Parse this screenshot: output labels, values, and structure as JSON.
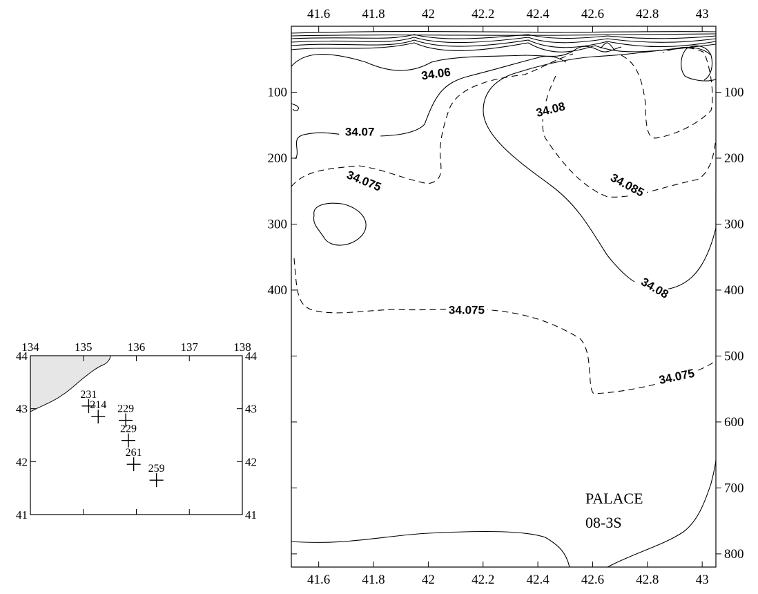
{
  "chart_data": [
    {
      "id": "section",
      "type": "contour",
      "xlim": [
        41.5,
        43.05
      ],
      "ylim": [
        0,
        820
      ],
      "y_inverted": true,
      "x_ticks": [
        41.6,
        41.8,
        42,
        42.2,
        42.4,
        42.6,
        42.8,
        43
      ],
      "x_tick_labels": [
        "41.6",
        "41.8",
        "42",
        "42.2",
        "42.4",
        "42.6",
        "42.8",
        "43"
      ],
      "y_ticks": [
        100,
        200,
        300,
        400,
        500,
        600,
        700,
        800
      ],
      "y_tick_labels_left": [
        "100",
        "200",
        "300",
        "400"
      ],
      "y_tick_labels_right": [
        "100",
        "200",
        "300",
        "400",
        "500",
        "600",
        "700",
        "800"
      ],
      "contour_labels": [
        {
          "text": "34.06",
          "x": 42.03,
          "y": 78,
          "rotate": -8
        },
        {
          "text": "34.08",
          "x": 42.45,
          "y": 132,
          "rotate": -14
        },
        {
          "text": "34.07",
          "x": 41.75,
          "y": 166,
          "rotate": 0
        },
        {
          "text": "34.075",
          "x": 41.76,
          "y": 240,
          "rotate": 22
        },
        {
          "text": "34.085",
          "x": 42.72,
          "y": 246,
          "rotate": 28
        },
        {
          "text": "34.08",
          "x": 42.82,
          "y": 402,
          "rotate": 30
        },
        {
          "text": "34.075",
          "x": 42.14,
          "y": 436,
          "rotate": 0
        },
        {
          "text": "34.075",
          "x": 42.91,
          "y": 537,
          "rotate": -12
        }
      ],
      "annotation": [
        "PALACE",
        "08-3S"
      ]
    },
    {
      "id": "location-map",
      "type": "scatter",
      "xlim": [
        134,
        138
      ],
      "ylim": [
        41,
        44
      ],
      "x_ticks": [
        134,
        135,
        136,
        137,
        138
      ],
      "x_tick_labels": [
        "134",
        "135",
        "136",
        "137",
        "138"
      ],
      "y_ticks": [
        41,
        42,
        43,
        44
      ],
      "y_tick_labels": [
        "41",
        "42",
        "43",
        "44"
      ],
      "stations": [
        {
          "label": "231",
          "lon": 135.1,
          "lat": 43.05
        },
        {
          "label": "214",
          "lon": 135.28,
          "lat": 42.85
        },
        {
          "label": "229",
          "lon": 135.8,
          "lat": 42.78
        },
        {
          "label": "229",
          "lon": 135.85,
          "lat": 42.4
        },
        {
          "label": "261",
          "lon": 135.95,
          "lat": 41.95
        },
        {
          "label": "259",
          "lon": 136.38,
          "lat": 41.65
        }
      ]
    }
  ]
}
